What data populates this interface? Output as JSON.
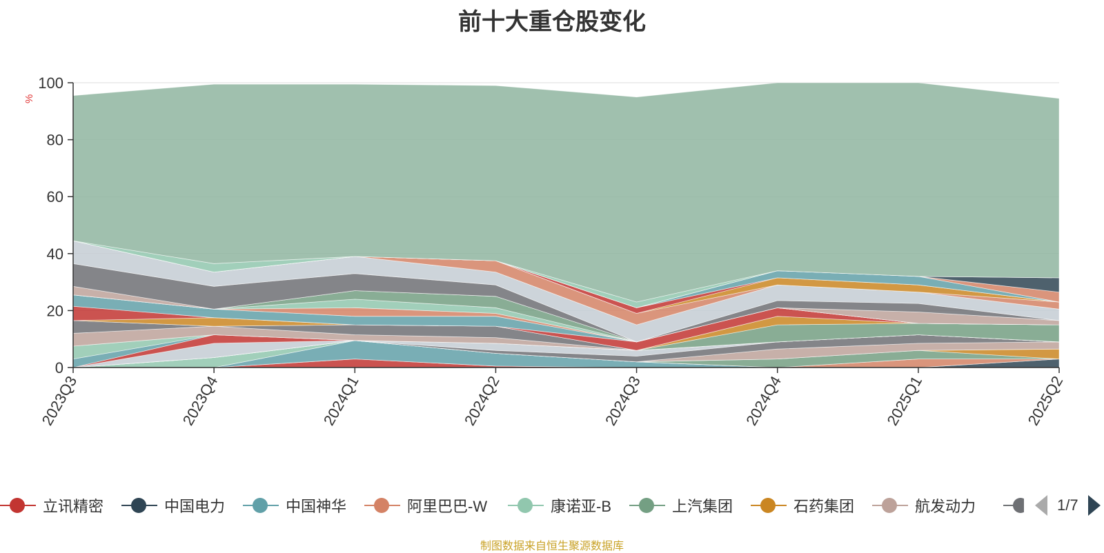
{
  "chart_data": {
    "type": "area",
    "stacked": true,
    "title": "前十大重仓股变化",
    "ylabel": "%",
    "ylim": [
      0,
      100
    ],
    "yticks": [
      0,
      20,
      40,
      60,
      80,
      100
    ],
    "grid": true,
    "categories": [
      "2023Q3",
      "2023Q4",
      "2024Q1",
      "2024Q2",
      "2024Q3",
      "2024Q4",
      "2025Q1",
      "2025Q2"
    ],
    "series": [
      {
        "name": "立讯精密",
        "color": "#c23531",
        "values": [
          0,
          0,
          3,
          0.5,
          0,
          0,
          0,
          0
        ]
      },
      {
        "name": "中国电力",
        "color": "#2f4554",
        "values": [
          0,
          0,
          0,
          0,
          0,
          0,
          0,
          3
        ]
      },
      {
        "name": "中国神华",
        "color": "#61a0a8",
        "values": [
          0,
          0,
          6.5,
          4.5,
          2,
          0,
          0,
          0
        ]
      },
      {
        "name": "阿里巴巴-W",
        "color": "#d48265",
        "values": [
          0,
          0,
          0,
          0,
          0,
          0,
          3,
          0
        ]
      },
      {
        "name": "康诺亚-B",
        "color": "#91c7ae",
        "values": [
          0,
          3.5,
          0,
          0,
          0,
          0,
          0,
          0
        ]
      },
      {
        "name": "上汽集团",
        "color": "#749f83",
        "values": [
          0,
          0,
          0,
          0,
          0,
          3,
          3,
          0
        ]
      },
      {
        "name": "石药集团",
        "color": "#ca8622",
        "values": [
          0,
          0,
          0,
          0,
          0,
          0,
          0,
          3.5
        ]
      },
      {
        "name": "航发动力",
        "color": "#bda29a",
        "values": [
          0,
          0,
          0,
          0,
          0,
          3.5,
          2.5,
          2.5
        ]
      },
      {
        "name": "",
        "color": "#6e7074",
        "values": [
          0,
          0,
          0,
          1,
          2,
          2.5,
          3,
          0
        ]
      },
      {
        "name": "",
        "color": "#c4ccd3",
        "values": [
          0,
          5,
          0,
          2.5,
          2,
          0,
          0,
          0
        ]
      },
      {
        "name": "",
        "color": "#c23531",
        "values": [
          0,
          3,
          0,
          0,
          0,
          0,
          0,
          0
        ]
      },
      {
        "name": "",
        "color": "#61a0a8",
        "values": [
          3,
          0,
          0,
          0,
          0,
          0,
          0,
          0
        ]
      },
      {
        "name": "",
        "color": "#91c7ae",
        "values": [
          4.5,
          0,
          0,
          0,
          0,
          0,
          0,
          0
        ]
      },
      {
        "name": "",
        "color": "#bda29a",
        "values": [
          4.5,
          3,
          2,
          2,
          0,
          0,
          0,
          0
        ]
      },
      {
        "name": "",
        "color": "#6e7074",
        "values": [
          4.5,
          0,
          3.5,
          4,
          0,
          0,
          0,
          0
        ]
      },
      {
        "name": "",
        "color": "#749f83",
        "values": [
          0,
          0,
          0,
          0,
          0,
          6,
          4,
          6
        ]
      },
      {
        "name": "",
        "color": "#ca8622",
        "values": [
          0,
          3,
          0,
          0,
          0,
          3,
          0,
          0
        ]
      },
      {
        "name": "",
        "color": "#c23531",
        "values": [
          5,
          0,
          0,
          0,
          3,
          3,
          0,
          0
        ]
      },
      {
        "name": "",
        "color": "#61a0a8",
        "values": [
          4,
          3,
          3,
          3.5,
          0,
          0,
          0,
          0
        ]
      },
      {
        "name": "",
        "color": "#d48265",
        "values": [
          0,
          0,
          3,
          1,
          0,
          0,
          0,
          0
        ]
      },
      {
        "name": "",
        "color": "#91c7ae",
        "values": [
          0,
          0,
          3,
          2,
          0,
          0,
          0,
          0
        ]
      },
      {
        "name": "",
        "color": "#749f83",
        "values": [
          0,
          0,
          3,
          4,
          0,
          0,
          0,
          0
        ]
      },
      {
        "name": "",
        "color": "#bda29a",
        "values": [
          3,
          0,
          0,
          0,
          0,
          0,
          4,
          1.5
        ]
      },
      {
        "name": "",
        "color": "#6e7074",
        "values": [
          8,
          8,
          6,
          4,
          0,
          2.5,
          3,
          0
        ]
      },
      {
        "name": "",
        "color": "#c4ccd3",
        "values": [
          8,
          5,
          6,
          4.5,
          6,
          5.5,
          4,
          4
        ]
      },
      {
        "name": "",
        "color": "#d48265",
        "values": [
          0,
          0,
          0,
          4,
          4,
          0,
          0,
          2.5
        ]
      },
      {
        "name": "",
        "color": "#ca8622",
        "values": [
          0,
          0,
          0,
          0,
          0,
          2.5,
          2.5,
          0
        ]
      },
      {
        "name": "",
        "color": "#c23531",
        "values": [
          0,
          0,
          0,
          0,
          2,
          0,
          0,
          0
        ]
      },
      {
        "name": "",
        "color": "#61a0a8",
        "values": [
          0,
          0,
          0,
          0,
          0,
          2.5,
          3,
          0
        ]
      },
      {
        "name": "",
        "color": "#d48265",
        "values": [
          0,
          0,
          0,
          0,
          0,
          0,
          0,
          3.5
        ]
      },
      {
        "name": "",
        "color": "#2f4554",
        "values": [
          0,
          0,
          0,
          0,
          0,
          0,
          0,
          5
        ]
      },
      {
        "name": "",
        "color": "#91c7ae",
        "values": [
          0,
          3,
          0,
          0,
          2,
          0,
          0,
          0
        ]
      },
      {
        "name": "",
        "color": "#8fb5a0",
        "values": [
          51,
          63,
          60.5,
          61.5,
          72,
          66,
          68,
          63
        ]
      }
    ]
  },
  "legend": {
    "items": [
      {
        "label": "立讯精密",
        "color": "#c23531"
      },
      {
        "label": "中国电力",
        "color": "#2f4554"
      },
      {
        "label": "中国神华",
        "color": "#61a0a8"
      },
      {
        "label": "阿里巴巴-W",
        "color": "#d48265"
      },
      {
        "label": "康诺亚-B",
        "color": "#91c7ae"
      },
      {
        "label": "上汽集团",
        "color": "#749f83"
      },
      {
        "label": "石药集团",
        "color": "#ca8622"
      },
      {
        "label": "航发动力",
        "color": "#bda29a"
      }
    ],
    "partial_color": "#6e7074",
    "page": "1/7"
  },
  "source_note": "制图数据来自恒生聚源数据库"
}
